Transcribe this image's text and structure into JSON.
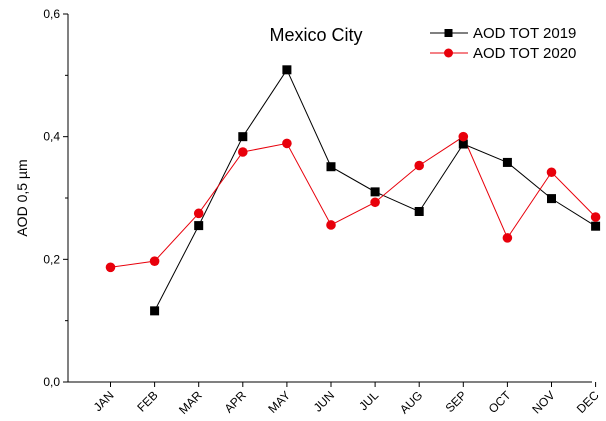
{
  "chart_data": {
    "type": "line",
    "title": "Mexico City",
    "ylabel": "AOD 0,5 µm",
    "xlabel": "",
    "categories": [
      "JAN",
      "FEB",
      "MAR",
      "APR",
      "MAY",
      "JUN",
      "JUL",
      "AUG",
      "SEP",
      "OCT",
      "NOV",
      "DEC"
    ],
    "ylim": [
      0,
      0.6
    ],
    "yticks": [
      {
        "value": 0,
        "label": "0,0"
      },
      {
        "value": 0.2,
        "label": "0,2"
      },
      {
        "value": 0.4,
        "label": "0,4"
      },
      {
        "value": 0.6,
        "label": "0,6"
      }
    ],
    "grid": false,
    "legend_position": "top-right",
    "series": [
      {
        "name": "AOD TOT 2019",
        "color": "#000000",
        "marker": "square",
        "values": [
          null,
          0.116,
          0.255,
          0.4,
          0.509,
          0.351,
          0.31,
          0.278,
          0.388,
          0.358,
          0.299,
          0.254
        ]
      },
      {
        "name": "AOD TOT 2020",
        "color": "#e8000b",
        "marker": "circle",
        "values": [
          0.187,
          0.197,
          0.275,
          0.375,
          0.389,
          0.256,
          0.293,
          0.353,
          0.4,
          0.235,
          0.342,
          0.269
        ]
      }
    ]
  }
}
